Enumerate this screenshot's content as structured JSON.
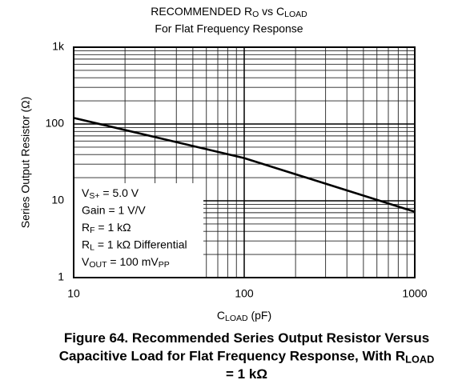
{
  "chart_data": {
    "type": "line",
    "title": [
      {
        "text": "RECOMMENDED R"
      },
      {
        "sub": "O"
      },
      {
        "text": " vs C"
      },
      {
        "sub": "LOAD"
      }
    ],
    "subtitle": "For Flat Frequency Response",
    "x_label": [
      {
        "text": "C"
      },
      {
        "sub": "LOAD"
      },
      {
        "text": " (pF)"
      }
    ],
    "y_label": "Series Output Resistor (Ω)",
    "log_x": true,
    "log_y": true,
    "grid": true,
    "minor_grid": true,
    "xlim": [
      10,
      1000
    ],
    "ylim": [
      1,
      1000
    ],
    "xticks": [
      10,
      100,
      1000
    ],
    "yticks": [
      1,
      10,
      100,
      {
        "value": 1000,
        "label": "1k"
      }
    ],
    "series": [
      {
        "color": "#000000",
        "x": [
          10,
          100,
          1000
        ],
        "values": [
          120,
          36,
          7.2
        ]
      }
    ],
    "annotation": [
      [
        {
          "text": "V"
        },
        {
          "sub": "S+"
        },
        {
          "text": " = 5.0 V"
        }
      ],
      [
        {
          "text": "Gain = 1 V/V"
        }
      ],
      [
        {
          "text": "R"
        },
        {
          "sub": "F"
        },
        {
          "text": " = 1 kΩ"
        }
      ],
      [
        {
          "text": "R"
        },
        {
          "sub": "L"
        },
        {
          "text": " = 1 kΩ Differential"
        }
      ],
      [
        {
          "text": "V"
        },
        {
          "sub": "OUT"
        },
        {
          "text": " = 100 mV"
        },
        {
          "sub": "PP"
        }
      ]
    ],
    "caption": [
      [
        {
          "text": "Figure 64. Recommended Series Output Resistor Versus"
        }
      ],
      [
        {
          "text": "Capacitive Load for Flat Frequency Response, With R"
        },
        {
          "sub": "LOAD"
        }
      ],
      [
        {
          "text": "= 1 kΩ"
        }
      ]
    ]
  }
}
